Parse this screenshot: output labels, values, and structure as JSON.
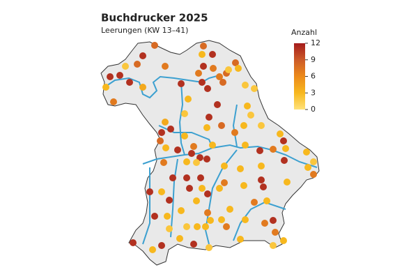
{
  "map": {
    "title": "Buchdrucker 2025",
    "subtitle": "Leerungen (KW 13–41)",
    "legend": {
      "title": "Anzahl",
      "ticks": [
        0,
        3,
        6,
        9,
        12
      ],
      "colors": [
        "#ffe27a",
        "#f7b81e",
        "#ec8a1a",
        "#cc5a28",
        "#a51c1c"
      ]
    },
    "values": [
      11,
      8,
      8,
      2,
      7,
      11,
      11,
      11,
      3,
      4,
      7,
      11,
      3,
      2,
      8,
      3,
      11,
      11,
      7,
      7,
      11,
      11,
      7,
      8,
      8,
      8,
      2,
      3,
      2,
      2,
      11,
      11,
      3,
      8,
      3,
      2,
      7,
      3,
      2,
      3,
      11,
      4,
      11,
      11,
      8,
      3,
      11,
      3,
      7,
      11,
      11,
      11,
      3,
      2,
      3,
      7,
      3,
      3,
      3,
      11,
      7,
      3,
      3,
      11,
      3,
      2,
      3,
      7,
      11,
      3,
      11,
      11,
      11,
      11,
      3,
      11,
      3,
      7,
      11,
      3,
      3,
      7,
      3,
      3,
      11,
      11,
      3,
      7,
      3,
      11,
      3,
      2,
      2,
      3,
      3,
      3,
      3,
      7,
      3,
      7,
      11,
      7,
      3,
      11,
      2,
      3,
      11,
      3,
      11,
      2,
      3
    ]
  }
}
